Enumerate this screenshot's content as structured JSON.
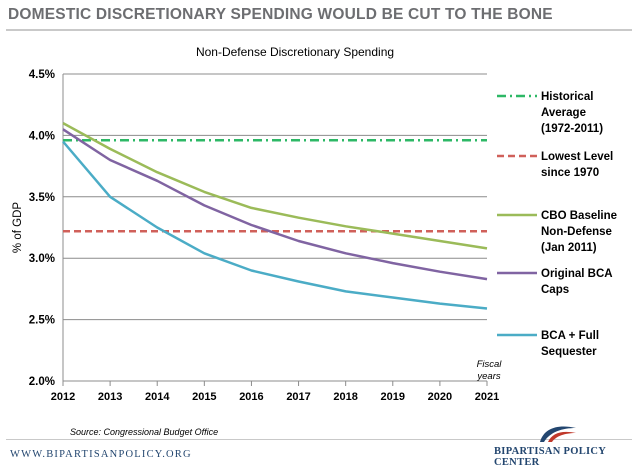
{
  "header": {
    "title": "DOMESTIC DISCRETIONARY SPENDING WOULD BE CUT TO THE BONE"
  },
  "footer": {
    "website": "WWW.BIPARTISANPOLICY.ORG",
    "organization": "BIPARTISAN POLICY CENTER",
    "logo_icon": "bpc-logo-icon"
  },
  "chart_data": {
    "type": "line",
    "title": "Non-Defense Discretionary Spending",
    "xlabel": "Fiscal years",
    "xlabel_lines": [
      "Fiscal",
      "years"
    ],
    "ylabel": "% of GDP",
    "source": "Source: Congressional Budget Office",
    "x": [
      2012,
      2013,
      2014,
      2015,
      2016,
      2017,
      2018,
      2019,
      2020,
      2021
    ],
    "x_tick_labels": [
      "2012",
      "2013",
      "2014",
      "2015",
      "2016",
      "2017",
      "2018",
      "2019",
      "2020",
      "2021"
    ],
    "ylim": [
      2.0,
      4.5
    ],
    "y_ticks": [
      2.0,
      2.5,
      3.0,
      3.5,
      4.0,
      4.5
    ],
    "y_tick_labels": [
      "2.0%",
      "2.5%",
      "3.0%",
      "3.5%",
      "4.0%",
      "4.5%"
    ],
    "grid": "horizontal",
    "legend_position": "right",
    "series": [
      {
        "name": "Historical Average (1972-2011)",
        "legend_lines": [
          "Historical",
          "Average",
          "(1972-2011)"
        ],
        "style": "dash-dot",
        "color": "#2db866",
        "values": [
          3.96,
          3.96,
          3.96,
          3.96,
          3.96,
          3.96,
          3.96,
          3.96,
          3.96,
          3.96
        ]
      },
      {
        "name": "Lowest Level since 1970",
        "legend_lines": [
          "Lowest Level",
          "since 1970"
        ],
        "style": "dashed",
        "color": "#d0605a",
        "values": [
          3.22,
          3.22,
          3.22,
          3.22,
          3.22,
          3.22,
          3.22,
          3.22,
          3.22,
          3.22
        ]
      },
      {
        "name": "CBO Baseline Non-Defense (Jan 2011)",
        "legend_lines": [
          "CBO Baseline",
          "Non-Defense",
          "(Jan 2011)"
        ],
        "style": "solid",
        "color": "#9bbb59",
        "values": [
          4.1,
          3.89,
          3.7,
          3.54,
          3.41,
          3.33,
          3.26,
          3.2,
          3.14,
          3.08
        ]
      },
      {
        "name": "Original BCA Caps",
        "legend_lines": [
          "Original BCA",
          "Caps"
        ],
        "style": "solid",
        "color": "#8064a2",
        "values": [
          4.05,
          3.8,
          3.63,
          3.43,
          3.27,
          3.14,
          3.04,
          2.96,
          2.89,
          2.83
        ]
      },
      {
        "name": "BCA + Full Sequester",
        "legend_lines": [
          "BCA + Full",
          "Sequester"
        ],
        "style": "solid",
        "color": "#4bacc6",
        "values": [
          3.95,
          3.5,
          3.25,
          3.04,
          2.9,
          2.81,
          2.73,
          2.68,
          2.63,
          2.59
        ]
      }
    ]
  }
}
